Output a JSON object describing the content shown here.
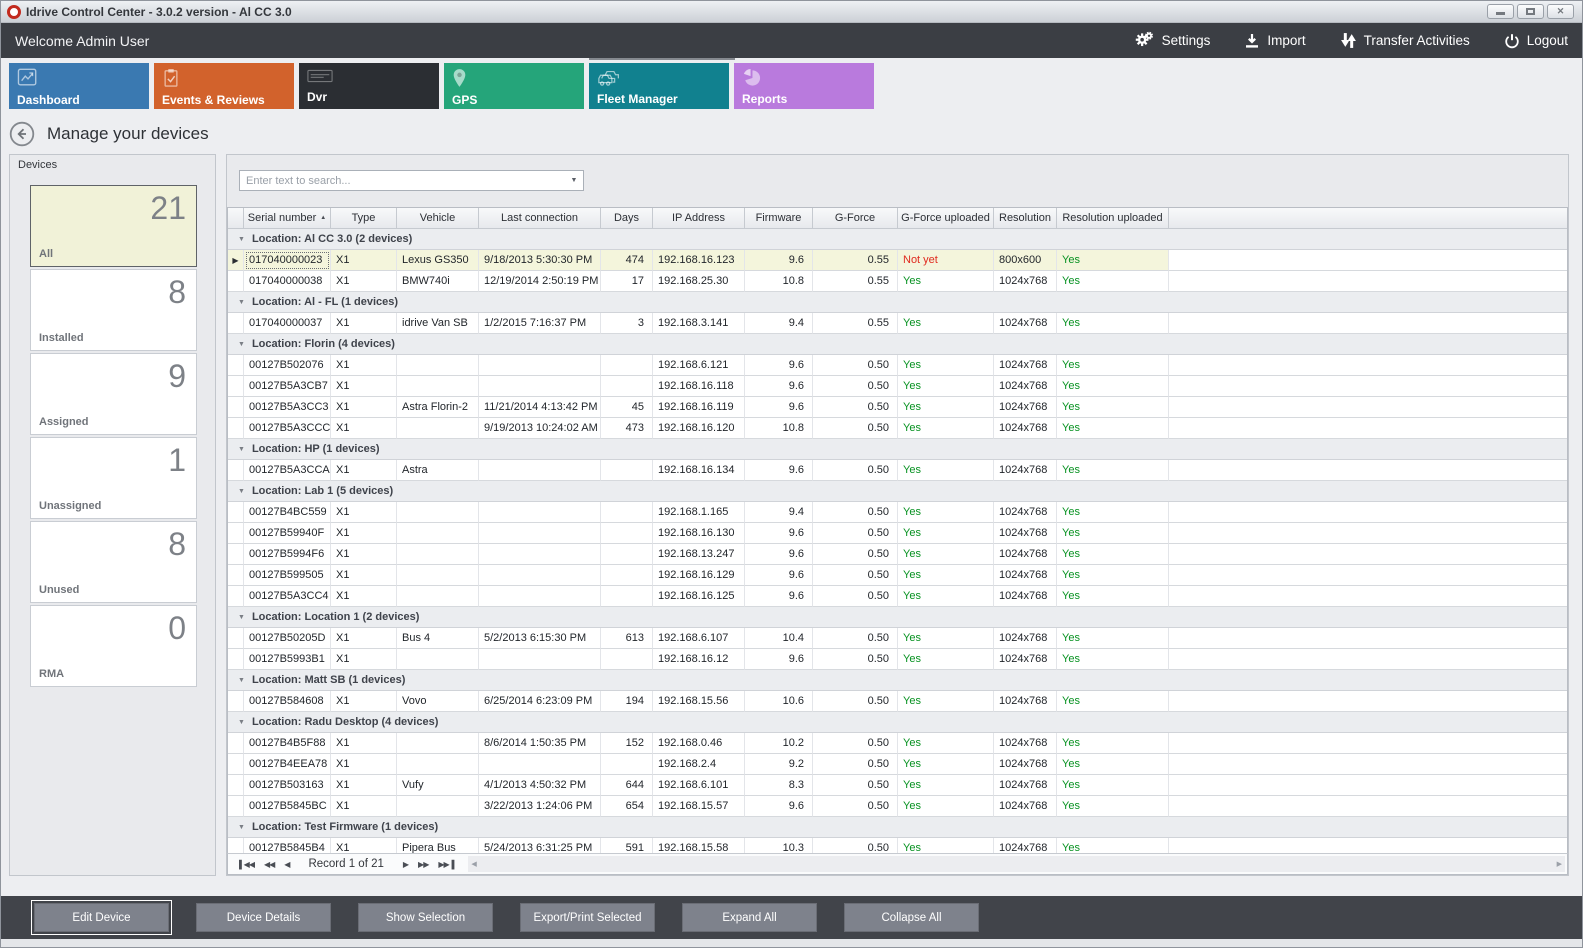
{
  "window": {
    "title": "Idrive Control Center - 3.0.2 version - Al CC 3.0",
    "controls": [
      "minimize",
      "maximize",
      "close"
    ]
  },
  "topbar": {
    "welcome": "Welcome Admin User",
    "actions": [
      {
        "label": "Settings",
        "icon": "gears-icon"
      },
      {
        "label": "Import",
        "icon": "import-icon"
      },
      {
        "label": "Transfer Activities",
        "icon": "transfer-icon"
      },
      {
        "label": "Logout",
        "icon": "power-icon"
      }
    ]
  },
  "tabs": [
    {
      "label": "Dashboard",
      "icon": "chart-icon",
      "color": "#3a79b1",
      "selected": false
    },
    {
      "label": "Events & Reviews",
      "icon": "clipboard-icon",
      "color": "#d2622c",
      "selected": false
    },
    {
      "label": "Dvr",
      "icon": "dvr-icon",
      "color": "#2b2e33",
      "selected": false
    },
    {
      "label": "GPS",
      "icon": "pin-icon",
      "color": "#25a57a",
      "selected": false
    },
    {
      "label": "Fleet Manager",
      "icon": "fleet-icon",
      "color": "#11818f",
      "selected": true
    },
    {
      "label": "Reports",
      "icon": "pie-icon",
      "color": "#b97add",
      "selected": false
    }
  ],
  "page": {
    "title": "Manage your devices"
  },
  "sidebar": {
    "title": "Devices",
    "cards": [
      {
        "count": "21",
        "label": "All",
        "selected": true
      },
      {
        "count": "8",
        "label": "Installed",
        "selected": false
      },
      {
        "count": "9",
        "label": "Assigned",
        "selected": false
      },
      {
        "count": "1",
        "label": "Unassigned",
        "selected": false
      },
      {
        "count": "8",
        "label": "Unused",
        "selected": false
      },
      {
        "count": "0",
        "label": "RMA",
        "selected": false
      }
    ]
  },
  "search": {
    "placeholder": "Enter text to search..."
  },
  "grid": {
    "columns": [
      {
        "key": "serial",
        "label": "Serial number",
        "align": "left",
        "sorted": "asc"
      },
      {
        "key": "type",
        "label": "Type",
        "align": "left"
      },
      {
        "key": "vehicle",
        "label": "Vehicle",
        "align": "left"
      },
      {
        "key": "last_connection",
        "label": "Last connection",
        "align": "left"
      },
      {
        "key": "days",
        "label": "Days",
        "align": "right"
      },
      {
        "key": "ip",
        "label": "IP Address",
        "align": "left"
      },
      {
        "key": "firmware",
        "label": "Firmware",
        "align": "right"
      },
      {
        "key": "gforce",
        "label": "G-Force",
        "align": "right"
      },
      {
        "key": "gforce_uploaded",
        "label": "G-Force uploaded",
        "align": "left"
      },
      {
        "key": "resolution",
        "label": "Resolution",
        "align": "left"
      },
      {
        "key": "resolution_uploaded",
        "label": "Resolution uploaded",
        "align": "left"
      }
    ],
    "status_colors": {
      "yes": "#089222",
      "not_yet": "#e02a1e"
    },
    "groups": [
      {
        "label": "Location: Al CC 3.0 (2 devices)",
        "rows": [
          {
            "serial": "017040000023",
            "type": "X1",
            "vehicle": "Lexus GS350",
            "last_connection": "9/18/2013 5:30:30 PM",
            "days": "474",
            "ip": "192.168.16.123",
            "firmware": "9.6",
            "gforce": "0.55",
            "gforce_uploaded": "Not yet",
            "resolution": "800x600",
            "resolution_uploaded": "Yes",
            "selected": true
          },
          {
            "serial": "017040000038",
            "type": "X1",
            "vehicle": "BMW740i",
            "last_connection": "12/19/2014 2:50:19 PM",
            "days": "17",
            "ip": "192.168.25.30",
            "firmware": "10.8",
            "gforce": "0.55",
            "gforce_uploaded": "Yes",
            "resolution": "1024x768",
            "resolution_uploaded": "Yes"
          }
        ]
      },
      {
        "label": "Location: Al - FL (1 devices)",
        "rows": [
          {
            "serial": "017040000037",
            "type": "X1",
            "vehicle": "idrive Van SB",
            "last_connection": "1/2/2015 7:16:37 PM",
            "days": "3",
            "ip": "192.168.3.141",
            "firmware": "9.4",
            "gforce": "0.55",
            "gforce_uploaded": "Yes",
            "resolution": "1024x768",
            "resolution_uploaded": "Yes"
          }
        ]
      },
      {
        "label": "Location: Florin (4 devices)",
        "rows": [
          {
            "serial": "00127B502076",
            "type": "X1",
            "vehicle": "",
            "last_connection": "",
            "days": "",
            "ip": "192.168.6.121",
            "firmware": "9.6",
            "gforce": "0.50",
            "gforce_uploaded": "Yes",
            "resolution": "1024x768",
            "resolution_uploaded": "Yes"
          },
          {
            "serial": "00127B5A3CB7",
            "type": "X1",
            "vehicle": "",
            "last_connection": "",
            "days": "",
            "ip": "192.168.16.118",
            "firmware": "9.6",
            "gforce": "0.50",
            "gforce_uploaded": "Yes",
            "resolution": "1024x768",
            "resolution_uploaded": "Yes"
          },
          {
            "serial": "00127B5A3CC3",
            "type": "X1",
            "vehicle": "Astra Florin-2",
            "last_connection": "11/21/2014 4:13:42 PM",
            "days": "45",
            "ip": "192.168.16.119",
            "firmware": "9.6",
            "gforce": "0.50",
            "gforce_uploaded": "Yes",
            "resolution": "1024x768",
            "resolution_uploaded": "Yes"
          },
          {
            "serial": "00127B5A3CCC",
            "type": "X1",
            "vehicle": "",
            "last_connection": "9/19/2013 10:24:02 AM",
            "days": "473",
            "ip": "192.168.16.120",
            "firmware": "10.8",
            "gforce": "0.50",
            "gforce_uploaded": "Yes",
            "resolution": "1024x768",
            "resolution_uploaded": "Yes"
          }
        ]
      },
      {
        "label": "Location: HP (1 devices)",
        "rows": [
          {
            "serial": "00127B5A3CCA",
            "type": "X1",
            "vehicle": "Astra",
            "last_connection": "",
            "days": "",
            "ip": "192.168.16.134",
            "firmware": "9.6",
            "gforce": "0.50",
            "gforce_uploaded": "Yes",
            "resolution": "1024x768",
            "resolution_uploaded": "Yes"
          }
        ]
      },
      {
        "label": "Location: Lab 1 (5 devices)",
        "rows": [
          {
            "serial": "00127B4BC559",
            "type": "X1",
            "vehicle": "",
            "last_connection": "",
            "days": "",
            "ip": "192.168.1.165",
            "firmware": "9.4",
            "gforce": "0.50",
            "gforce_uploaded": "Yes",
            "resolution": "1024x768",
            "resolution_uploaded": "Yes"
          },
          {
            "serial": "00127B59940F",
            "type": "X1",
            "vehicle": "",
            "last_connection": "",
            "days": "",
            "ip": "192.168.16.130",
            "firmware": "9.6",
            "gforce": "0.50",
            "gforce_uploaded": "Yes",
            "resolution": "1024x768",
            "resolution_uploaded": "Yes"
          },
          {
            "serial": "00127B5994F6",
            "type": "X1",
            "vehicle": "",
            "last_connection": "",
            "days": "",
            "ip": "192.168.13.247",
            "firmware": "9.6",
            "gforce": "0.50",
            "gforce_uploaded": "Yes",
            "resolution": "1024x768",
            "resolution_uploaded": "Yes"
          },
          {
            "serial": "00127B599505",
            "type": "X1",
            "vehicle": "",
            "last_connection": "",
            "days": "",
            "ip": "192.168.16.129",
            "firmware": "9.6",
            "gforce": "0.50",
            "gforce_uploaded": "Yes",
            "resolution": "1024x768",
            "resolution_uploaded": "Yes"
          },
          {
            "serial": "00127B5A3CC4",
            "type": "X1",
            "vehicle": "",
            "last_connection": "",
            "days": "",
            "ip": "192.168.16.125",
            "firmware": "9.6",
            "gforce": "0.50",
            "gforce_uploaded": "Yes",
            "resolution": "1024x768",
            "resolution_uploaded": "Yes"
          }
        ]
      },
      {
        "label": "Location: Location 1 (2 devices)",
        "rows": [
          {
            "serial": "00127B50205D",
            "type": "X1",
            "vehicle": "Bus 4",
            "last_connection": "5/2/2013 6:15:30 PM",
            "days": "613",
            "ip": "192.168.6.107",
            "firmware": "10.4",
            "gforce": "0.50",
            "gforce_uploaded": "Yes",
            "resolution": "1024x768",
            "resolution_uploaded": "Yes"
          },
          {
            "serial": "00127B5993B1",
            "type": "X1",
            "vehicle": "",
            "last_connection": "",
            "days": "",
            "ip": "192.168.16.12",
            "firmware": "9.6",
            "gforce": "0.50",
            "gforce_uploaded": "Yes",
            "resolution": "1024x768",
            "resolution_uploaded": "Yes"
          }
        ]
      },
      {
        "label": "Location: Matt SB (1 devices)",
        "rows": [
          {
            "serial": "00127B584608",
            "type": "X1",
            "vehicle": "Vovo",
            "last_connection": "6/25/2014 6:23:09 PM",
            "days": "194",
            "ip": "192.168.15.56",
            "firmware": "10.6",
            "gforce": "0.50",
            "gforce_uploaded": "Yes",
            "resolution": "1024x768",
            "resolution_uploaded": "Yes"
          }
        ]
      },
      {
        "label": "Location: Radu Desktop (4 devices)",
        "rows": [
          {
            "serial": "00127B4B5F88",
            "type": "X1",
            "vehicle": "",
            "last_connection": "8/6/2014 1:50:35 PM",
            "days": "152",
            "ip": "192.168.0.46",
            "firmware": "10.2",
            "gforce": "0.50",
            "gforce_uploaded": "Yes",
            "resolution": "1024x768",
            "resolution_uploaded": "Yes"
          },
          {
            "serial": "00127B4EEA78",
            "type": "X1",
            "vehicle": "",
            "last_connection": "",
            "days": "",
            "ip": "192.168.2.4",
            "firmware": "9.2",
            "gforce": "0.50",
            "gforce_uploaded": "Yes",
            "resolution": "1024x768",
            "resolution_uploaded": "Yes"
          },
          {
            "serial": "00127B503163",
            "type": "X1",
            "vehicle": "Vufy",
            "last_connection": "4/1/2013 4:50:32 PM",
            "days": "644",
            "ip": "192.168.6.101",
            "firmware": "8.3",
            "gforce": "0.50",
            "gforce_uploaded": "Yes",
            "resolution": "1024x768",
            "resolution_uploaded": "Yes"
          },
          {
            "serial": "00127B5845BC",
            "type": "X1",
            "vehicle": "",
            "last_connection": "3/22/2013 1:24:06 PM",
            "days": "654",
            "ip": "192.168.15.57",
            "firmware": "9.6",
            "gforce": "0.50",
            "gforce_uploaded": "Yes",
            "resolution": "1024x768",
            "resolution_uploaded": "Yes"
          }
        ]
      },
      {
        "label": "Location: Test Firmware (1 devices)",
        "rows": [
          {
            "serial": "00127B5845B4",
            "type": "X1",
            "vehicle": "Pipera Bus",
            "last_connection": "5/24/2013 6:31:25 PM",
            "days": "591",
            "ip": "192.168.15.58",
            "firmware": "10.3",
            "gforce": "0.50",
            "gforce_uploaded": "Yes",
            "resolution": "1024x768",
            "resolution_uploaded": "Yes"
          }
        ]
      }
    ],
    "pager": {
      "record_text": "Record 1 of 21"
    }
  },
  "footer": {
    "buttons": [
      {
        "label": "Edit Device",
        "focused": true
      },
      {
        "label": "Device Details",
        "focused": false
      },
      {
        "label": "Show Selection",
        "focused": false
      },
      {
        "label": "Export/Print Selected",
        "focused": false
      },
      {
        "label": "Expand All",
        "focused": false
      },
      {
        "label": "Collapse All",
        "focused": false
      }
    ]
  }
}
